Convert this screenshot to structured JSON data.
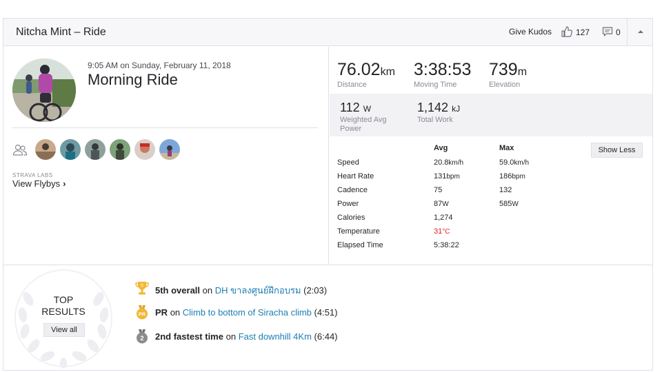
{
  "header": {
    "title": "Nitcha Mint – Ride",
    "give_kudos": "Give Kudos",
    "kudos_count": "127",
    "comment_count": "0"
  },
  "activity": {
    "datetime": "9:05 AM on Sunday, February 11, 2018",
    "name": "Morning Ride"
  },
  "labs": {
    "label": "STRAVA LABS",
    "flybys": "View Flybys"
  },
  "primary_stats": [
    {
      "value": "76.02",
      "unit": "km",
      "label": "Distance"
    },
    {
      "value": "3:38:53",
      "unit": "",
      "label": "Moving Time"
    },
    {
      "value": "739",
      "unit": "m",
      "label": "Elevation"
    }
  ],
  "secondary_stats": [
    {
      "value": "112",
      "unit": "W",
      "label": "Weighted Avg Power"
    },
    {
      "value": "1,142",
      "unit": "kJ",
      "label": "Total Work"
    }
  ],
  "more_stats": {
    "avg_header": "Avg",
    "max_header": "Max",
    "show_less": "Show Less",
    "rows": [
      {
        "label": "Speed",
        "avg": "20.8",
        "avg_unit": "km/h",
        "max": "59.0",
        "max_unit": "km/h"
      },
      {
        "label": "Heart Rate",
        "avg": "131",
        "avg_unit": "bpm",
        "max": "186",
        "max_unit": "bpm"
      },
      {
        "label": "Cadence",
        "avg": "75",
        "avg_unit": "",
        "max": "132",
        "max_unit": ""
      },
      {
        "label": "Power",
        "avg": "87",
        "avg_unit": "W",
        "max": "585",
        "max_unit": "W"
      },
      {
        "label": "Calories",
        "avg": "1,274",
        "avg_unit": "",
        "max": "",
        "max_unit": ""
      },
      {
        "label": "Temperature",
        "avg": "31",
        "avg_unit": "°C",
        "max": "",
        "max_unit": ""
      },
      {
        "label": "Elapsed Time",
        "avg": "5:38:22",
        "avg_unit": "",
        "max": "",
        "max_unit": ""
      }
    ]
  },
  "top_results": {
    "title_line1": "TOP",
    "title_line2": "RESULTS",
    "view_all": "View all",
    "items": [
      {
        "badge": "5",
        "rank": "5th overall",
        "on": "on",
        "segment": "DH ขาลงศูนย์ฝึกอบรม",
        "time": "(2:03)",
        "medal": "trophy-icon"
      },
      {
        "badge": "PR",
        "rank": "PR",
        "on": "on",
        "segment": "Climb to bottom of Siracha climb",
        "time": "(4:51)",
        "medal": "pr-medal-icon"
      },
      {
        "badge": "2",
        "rank": "2nd fastest time",
        "on": "on",
        "segment": "Fast downhill 4Km",
        "time": "(6:44)",
        "medal": "silver-medal-icon"
      }
    ]
  },
  "colors": {
    "link": "#1d7eb3",
    "hot": "#e0221a",
    "gold": "#f2b631",
    "silver": "#8c8c8c"
  }
}
